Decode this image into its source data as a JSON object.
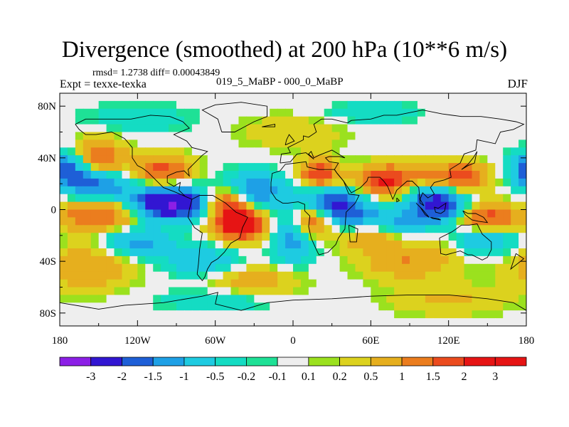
{
  "chart_data": {
    "type": "heatmap",
    "title": "Divergence (smoothed) at 200 hPa (10**6 m/s)",
    "stats_text": "rmsd= 1.2738 diff= 0.00043849",
    "experiment_label": "Expt = texxe-texka",
    "subtitle": "019_5_MaBP - 000_0_MaBP",
    "season": "DJF",
    "x_ticks": [
      "180",
      "120W",
      "60W",
      "0",
      "60E",
      "120E",
      "180"
    ],
    "x_tick_values": [
      -180,
      -120,
      -60,
      0,
      60,
      120,
      180
    ],
    "y_ticks": [
      "80N",
      "40N",
      "0",
      "40S",
      "80S"
    ],
    "y_tick_values": [
      80,
      40,
      0,
      -40,
      -80
    ],
    "xlim": [
      -180,
      180
    ],
    "ylim": [
      -90,
      90
    ],
    "colorbar_labels": [
      "-3",
      "-2",
      "-1.5",
      "-1",
      "-0.5",
      "-0.2",
      "-0.1",
      "0.1",
      "0.2",
      "0.5",
      "1",
      "1.5",
      "2",
      "3"
    ],
    "colorbar_colors": [
      "#8c1fe6",
      "#3216d2",
      "#1e5fd7",
      "#1ea0e6",
      "#1ecbe1",
      "#14dcc3",
      "#1ee196",
      "#eeeeee",
      "#9be11e",
      "#dcd21e",
      "#e6af1e",
      "#eb7d1e",
      "#eb4b1e",
      "#e61414",
      "#e61414"
    ],
    "field_blobs": [
      {
        "lon": -95,
        "lat": 5,
        "v": -3.2,
        "rlon": 20,
        "rlat": 9
      },
      {
        "lon": 30,
        "lat": 2,
        "v": -2.5,
        "rlon": 18,
        "rlat": 10
      },
      {
        "lon": 110,
        "lat": 5,
        "v": -2.6,
        "rlon": 15,
        "rlat": 10
      },
      {
        "lon": -150,
        "lat": 20,
        "v": -1.6,
        "rlon": 18,
        "rlat": 8
      },
      {
        "lon": -175,
        "lat": 32,
        "v": -2.0,
        "rlon": 12,
        "rlat": 9
      },
      {
        "lon": -30,
        "lat": 15,
        "v": -1.6,
        "rlon": 15,
        "rlat": 10
      },
      {
        "lon": 0,
        "lat": -20,
        "v": -1.5,
        "rlon": 12,
        "rlat": 14
      },
      {
        "lon": 70,
        "lat": -10,
        "v": -1.2,
        "rlon": 20,
        "rlat": 8
      },
      {
        "lon": 150,
        "lat": -20,
        "v": -1.5,
        "rlon": 15,
        "rlat": 10
      },
      {
        "lon": -120,
        "lat": -25,
        "v": -1.2,
        "rlon": 18,
        "rlat": 8
      },
      {
        "lon": -70,
        "lat": -40,
        "v": -1.0,
        "rlon": 20,
        "rlat": 8
      },
      {
        "lon": 90,
        "lat": 20,
        "v": -1.4,
        "rlon": 10,
        "rlat": 6
      },
      {
        "lon": -40,
        "lat": -12,
        "v": 3.0,
        "rlon": 14,
        "rlat": 8
      },
      {
        "lon": 15,
        "lat": -8,
        "v": 2.6,
        "rlon": 12,
        "rlat": 9
      },
      {
        "lon": 80,
        "lat": 22,
        "v": 2.8,
        "rlon": 20,
        "rlat": 8
      },
      {
        "lon": 150,
        "lat": -8,
        "v": 2.3,
        "rlon": 15,
        "rlat": 8
      },
      {
        "lon": 20,
        "lat": 28,
        "v": 2.0,
        "rlon": 10,
        "rlat": 8
      },
      {
        "lon": -100,
        "lat": 30,
        "v": 1.8,
        "rlon": 15,
        "rlat": 8
      },
      {
        "lon": -50,
        "lat": 5,
        "v": 2.0,
        "rlon": 12,
        "rlat": 8
      },
      {
        "lon": -150,
        "lat": -5,
        "v": 1.6,
        "rlon": 22,
        "rlat": 8
      },
      {
        "lon": 130,
        "lat": 25,
        "v": 1.8,
        "rlon": 15,
        "rlat": 8
      },
      {
        "lon": -150,
        "lat": 40,
        "v": 1.5,
        "rlon": 15,
        "rlat": 10
      },
      {
        "lon": 60,
        "lat": -20,
        "v": 1.2,
        "rlon": 15,
        "rlat": 8
      },
      {
        "lon": -160,
        "lat": -45,
        "v": 1.0,
        "rlon": 25,
        "rlat": 12
      },
      {
        "lon": 90,
        "lat": -40,
        "v": 1.0,
        "rlon": 25,
        "rlat": 10
      },
      {
        "lon": -30,
        "lat": -55,
        "v": 0.8,
        "rlon": 25,
        "rlat": 8
      },
      {
        "lon": 0,
        "lat": 60,
        "v": 0.4,
        "rlon": 30,
        "rlat": 10
      },
      {
        "lon": 120,
        "lat": -70,
        "v": 0.6,
        "rlon": 30,
        "rlat": 8
      },
      {
        "lon": -120,
        "lat": 70,
        "v": -0.4,
        "rlon": 30,
        "rlat": 8
      },
      {
        "lon": 60,
        "lat": 75,
        "v": -0.5,
        "rlon": 25,
        "rlat": 6
      },
      {
        "lon": -60,
        "lat": -70,
        "v": -0.5,
        "rlon": 30,
        "rlat": 6
      }
    ]
  }
}
